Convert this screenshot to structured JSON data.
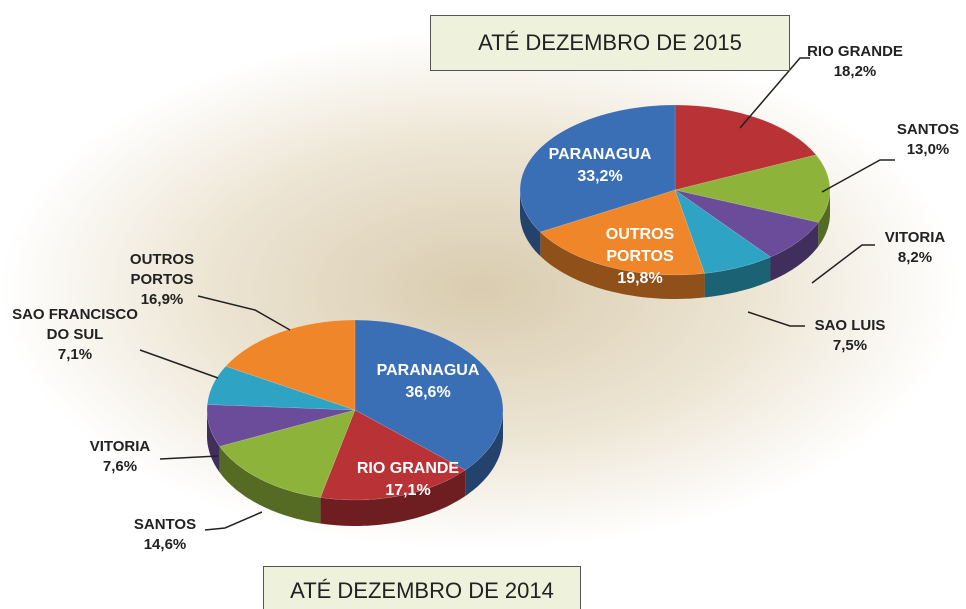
{
  "chart_data": [
    {
      "type": "pie",
      "title": "ATÉ DEZEMBRO DE 2015",
      "categories": [
        "RIO GRANDE",
        "SANTOS",
        "VITORIA",
        "SAO LUIS",
        "OUTROS PORTOS",
        "PARANAGUA"
      ],
      "values": [
        18.2,
        13.0,
        8.2,
        7.5,
        19.8,
        33.2
      ],
      "value_labels": [
        "18,2%",
        "13,0%",
        "8,2%",
        "7,5%",
        "19,8%",
        "33,2%"
      ],
      "colors": [
        "#b83236",
        "#8db33a",
        "#6b4c9a",
        "#2fa3c3",
        "#f0862a",
        "#3a6fb5"
      ]
    },
    {
      "type": "pie",
      "title": "ATÉ DEZEMBRO DE 2014",
      "categories": [
        "PARANAGUA",
        "RIO GRANDE",
        "SANTOS",
        "VITORIA",
        "SAO FRANCISCO DO SUL",
        "OUTROS PORTOS"
      ],
      "values": [
        36.6,
        17.1,
        14.6,
        7.6,
        7.1,
        16.9
      ],
      "value_labels": [
        "36,6%",
        "17,1%",
        "14,6%",
        "7,6%",
        "7,1%",
        "16,9%"
      ],
      "colors": [
        "#3a6fb5",
        "#b83236",
        "#8db33a",
        "#6b4c9a",
        "#2fa3c3",
        "#f0862a"
      ]
    }
  ]
}
